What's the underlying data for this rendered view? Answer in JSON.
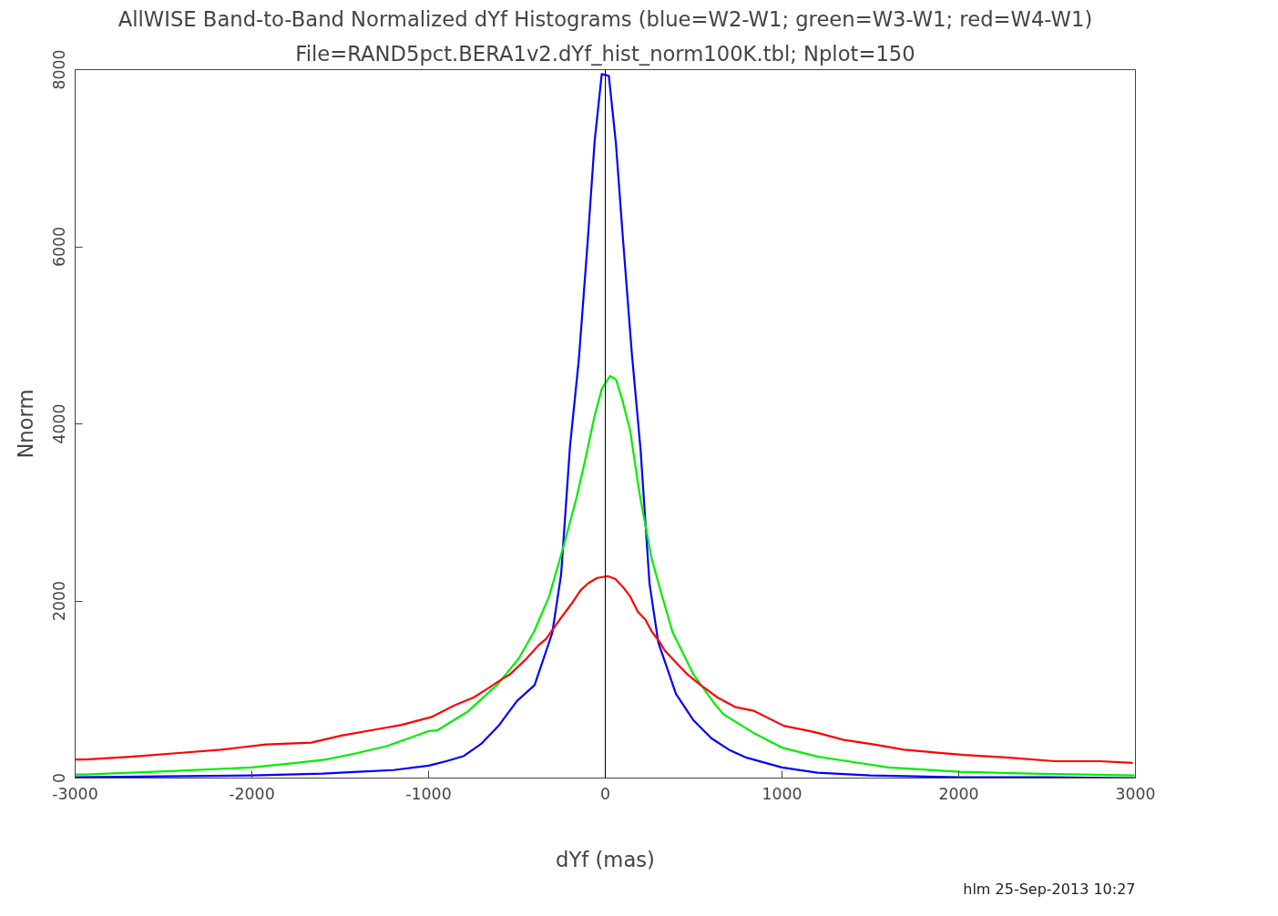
{
  "chart_data": {
    "type": "line",
    "title": "AllWISE Band-to-Band Normalized dYf Histograms (blue=W2-W1; green=W3-W1; red=W4-W1)",
    "subtitle": "File=RAND5pct.BERA1v2.dYf_hist_norm100K.tbl; Nplot=150",
    "xlabel": "dYf (mas)",
    "ylabel": "Nnorm",
    "annotations": [
      "hlm 25-Sep-2013 10:27"
    ],
    "xlim": [
      -3000,
      3000
    ],
    "ylim": [
      0,
      8000
    ],
    "xticks": [
      -3000,
      -2000,
      -1000,
      0,
      1000,
      2000,
      3000
    ],
    "yticks": [
      0,
      2000,
      4000,
      6000,
      8000
    ],
    "grid": false,
    "marker": "none",
    "line_style": "solid",
    "ref_lines": [
      {
        "axis": "x",
        "value": 0,
        "label": null,
        "color": "#000000"
      }
    ],
    "series": [
      {
        "color": "#0000ff",
        "x": [
          -3000,
          -2500,
          -2000,
          -1800,
          -1600,
          -1400,
          -1200,
          -1000,
          -900,
          -800,
          -700,
          -600,
          -500,
          -400,
          -300,
          -250,
          -200,
          -150,
          -100,
          -60,
          -20,
          20,
          60,
          100,
          150,
          200,
          250,
          300,
          400,
          500,
          600,
          700,
          800,
          1000,
          1200,
          1500,
          2000,
          2500,
          3000
        ],
        "values": [
          10,
          20,
          30,
          40,
          50,
          70,
          90,
          140,
          190,
          250,
          390,
          600,
          870,
          1050,
          1640,
          2300,
          3740,
          4720,
          6050,
          7200,
          7950,
          7930,
          7170,
          6090,
          4800,
          3700,
          2200,
          1530,
          950,
          650,
          450,
          320,
          230,
          120,
          60,
          30,
          10,
          10,
          0
        ]
      },
      {
        "color": "#00ee00",
        "x": [
          -3000,
          -2944,
          -2432,
          -2005,
          -1750,
          -1580,
          -1409,
          -1238,
          -1000,
          -950,
          -779,
          -608,
          -490,
          -404,
          -318,
          -233,
          -165,
          -114,
          -63,
          -19,
          27,
          61,
          99,
          141,
          193,
          261,
          312,
          380,
          499,
          618,
          669,
          839,
          1005,
          1206,
          1405,
          1605,
          2007,
          2407,
          2995
        ],
        "values": [
          40,
          40,
          80,
          120,
          170,
          210,
          280,
          360,
          530,
          540,
          750,
          1060,
          1350,
          1650,
          2050,
          2640,
          3150,
          3590,
          4070,
          4400,
          4540,
          4500,
          4250,
          3920,
          3220,
          2490,
          2120,
          1650,
          1170,
          840,
          720,
          510,
          340,
          240,
          180,
          120,
          70,
          50,
          30
        ]
      },
      {
        "color": "#ff0000",
        "x": [
          -3000,
          -2942,
          -2687,
          -2431,
          -2176,
          -1920,
          -1665,
          -1494,
          -1324,
          -1153,
          -983,
          -855,
          -745,
          -659,
          -583,
          -540,
          -455,
          -378,
          -336,
          -250,
          -183,
          -140,
          -97,
          -46,
          14,
          56,
          99,
          141,
          184,
          227,
          261,
          303,
          337,
          397,
          465,
          533,
          635,
          738,
          839,
          1010,
          1181,
          1351,
          1521,
          1692,
          1862,
          2032,
          2288,
          2544,
          2799,
          2985
        ],
        "values": [
          210,
          210,
          240,
          280,
          320,
          380,
          400,
          480,
          540,
          600,
          690,
          820,
          910,
          1020,
          1120,
          1170,
          1330,
          1500,
          1570,
          1810,
          1990,
          2120,
          2200,
          2260,
          2280,
          2250,
          2160,
          2050,
          1880,
          1790,
          1660,
          1550,
          1440,
          1310,
          1170,
          1060,
          910,
          800,
          760,
          590,
          520,
          430,
          380,
          320,
          290,
          260,
          230,
          190,
          190,
          170
        ]
      }
    ]
  }
}
